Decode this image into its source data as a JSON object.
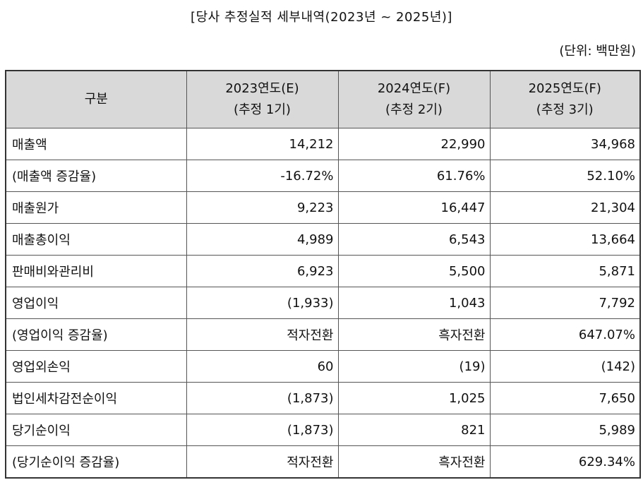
{
  "title": "[당사 추정실적 세부내역(2023년 ~ 2025년)]",
  "unit": "(단위: 백만원)",
  "header": {
    "category": "구분",
    "columns": [
      {
        "line1": "2023연도(E)",
        "line2": "(추정 1기)"
      },
      {
        "line1": "2024연도(F)",
        "line2": "(추정 2기)"
      },
      {
        "line1": "2025연도(F)",
        "line2": "(추정 3기)"
      }
    ]
  },
  "rows": [
    {
      "label": "매출액",
      "values": [
        "14,212",
        "22,990",
        "34,968"
      ]
    },
    {
      "label": "(매출액 증감율)",
      "values": [
        "-16.72%",
        "61.76%",
        "52.10%"
      ]
    },
    {
      "label": "매출원가",
      "values": [
        "9,223",
        "16,447",
        "21,304"
      ]
    },
    {
      "label": "매출총이익",
      "values": [
        "4,989",
        "6,543",
        "13,664"
      ]
    },
    {
      "label": "판매비와관리비",
      "values": [
        "6,923",
        "5,500",
        "5,871"
      ]
    },
    {
      "label": "영업이익",
      "values": [
        "(1,933)",
        "1,043",
        "7,792"
      ]
    },
    {
      "label": "(영업이익 증감율)",
      "values": [
        "적자전환",
        "흑자전환",
        "647.07%"
      ]
    },
    {
      "label": "영업외손익",
      "values": [
        "60",
        "(19)",
        "(142)"
      ]
    },
    {
      "label": "법인세차감전순이익",
      "values": [
        "(1,873)",
        "1,025",
        "7,650"
      ]
    },
    {
      "label": "당기순이익",
      "values": [
        "(1,873)",
        "821",
        "5,989"
      ]
    },
    {
      "label": "(당기순이익 증감율)",
      "values": [
        "적자전환",
        "흑자전환",
        "629.34%"
      ]
    }
  ]
}
